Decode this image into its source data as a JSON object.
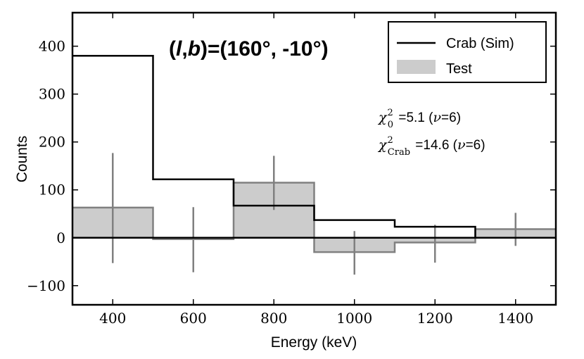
{
  "chart_data": {
    "type": "histogram",
    "title": "(l,b)=(160°, -10°)",
    "title_parts": {
      "open": "(",
      "l": "l",
      "comma": ",",
      "b": "b",
      "rest": ")=(160°, -10°)"
    },
    "xlabel": "Energy (keV)",
    "ylabel": "Counts",
    "xlim": [
      300,
      1500
    ],
    "ylim": [
      -140,
      470
    ],
    "xticks": [
      400,
      600,
      800,
      1000,
      1200,
      1400
    ],
    "yticks": [
      -100,
      0,
      100,
      200,
      300,
      400
    ],
    "ytick_labels": [
      "−100",
      "0",
      "100",
      "200",
      "300",
      "400"
    ],
    "bin_edges": [
      300,
      500,
      700,
      900,
      1100,
      1300,
      1500
    ],
    "series": [
      {
        "name": "Crab (Sim)",
        "style": "step",
        "color": "#000000",
        "values": [
          380,
          122,
          67,
          37,
          23,
          0
        ]
      },
      {
        "name": "Test",
        "style": "filled-step",
        "fill": "#cccccc",
        "edge": "#808080",
        "values": [
          63,
          -3,
          115,
          -30,
          -10,
          18
        ],
        "error_bar_x": [
          400,
          600,
          800,
          1000,
          1200,
          1400
        ],
        "error_lower": [
          -53,
          -72,
          58,
          -77,
          -52,
          -17
        ],
        "error_upper": [
          177,
          64,
          171,
          14,
          27,
          52
        ]
      }
    ],
    "legend": {
      "position": "top-right",
      "entries": [
        {
          "label": "Crab (Sim)",
          "kind": "line",
          "color": "#000000"
        },
        {
          "label": "Test",
          "kind": "patch",
          "color": "#cccccc"
        }
      ]
    },
    "annotations": [
      {
        "symbol": "χ",
        "sup": "2",
        "sub": "0",
        "text": " =5.1 (",
        "nu": "ν",
        "rest": "=6)"
      },
      {
        "symbol": "χ",
        "sup": "2",
        "sub": "Crab",
        "text": " =14.6 (",
        "nu": "ν",
        "rest": "=6)"
      }
    ]
  }
}
